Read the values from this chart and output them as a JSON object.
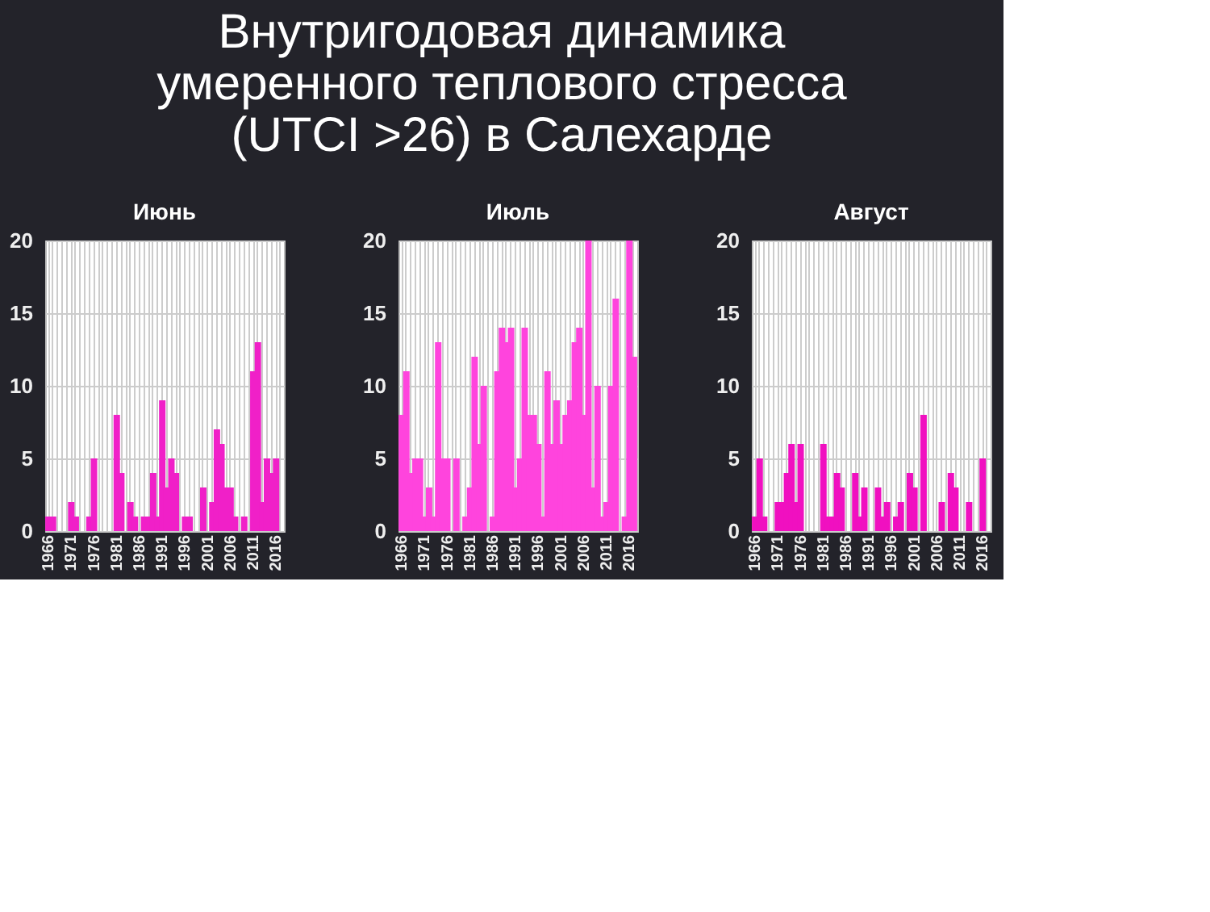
{
  "chart_data": [
    {
      "type": "other",
      "title": "Внутригодовая динамика умеренного теплового стресса (UTCI >26) в Салехарде"
    },
    {
      "type": "bar",
      "title": "Июнь",
      "categories": [
        "1966",
        null,
        null,
        null,
        null,
        "1971",
        null,
        null,
        null,
        null,
        "1976",
        null,
        null,
        null,
        null,
        "1981",
        null,
        null,
        null,
        null,
        "1986",
        null,
        null,
        null,
        null,
        "1991",
        null,
        null,
        null,
        null,
        "1996",
        null,
        null,
        null,
        null,
        "2001",
        null,
        null,
        null,
        null,
        "2006",
        null,
        null,
        null,
        null,
        "2011",
        null,
        null,
        null,
        null,
        "2016",
        null
      ],
      "values": [
        1,
        1,
        0,
        0,
        0,
        2,
        1,
        0,
        0,
        1,
        5,
        0,
        0,
        0,
        0,
        8,
        4,
        0,
        2,
        1,
        0,
        1,
        1,
        4,
        1,
        9,
        3,
        5,
        4,
        0,
        1,
        1,
        0,
        0,
        3,
        0,
        2,
        7,
        6,
        3,
        3,
        1,
        0,
        1,
        0,
        11,
        13,
        2,
        5,
        4,
        5,
        0
      ],
      "color": "#f020c8",
      "ylim": [
        0,
        20
      ],
      "yticks": [
        0,
        5,
        10,
        15,
        20
      ],
      "grid": true
    },
    {
      "type": "bar",
      "title": "Июль",
      "categories": [
        "1966",
        null,
        null,
        null,
        null,
        "1971",
        null,
        null,
        null,
        null,
        "1976",
        null,
        null,
        null,
        null,
        "1981",
        null,
        null,
        null,
        null,
        "1986",
        null,
        null,
        null,
        null,
        "1991",
        null,
        null,
        null,
        null,
        "1996",
        null,
        null,
        null,
        null,
        "2001",
        null,
        null,
        null,
        null,
        "2006",
        null,
        null,
        null,
        null,
        "2011",
        null,
        null,
        null,
        null,
        "2016",
        null
      ],
      "values": [
        8,
        11,
        4,
        5,
        5,
        1,
        3,
        1,
        13,
        5,
        5,
        0,
        5,
        0,
        1,
        3,
        12,
        6,
        10,
        0,
        1,
        11,
        14,
        13,
        14,
        3,
        5,
        14,
        8,
        8,
        6,
        1,
        11,
        6,
        9,
        6,
        8,
        9,
        13,
        14,
        8,
        20,
        3,
        10,
        1,
        2,
        10,
        16,
        0,
        1,
        20,
        12
      ],
      "color": "#ff44dd",
      "ylim": [
        0,
        20
      ],
      "yticks": [
        0,
        5,
        10,
        15,
        20
      ],
      "grid": true
    },
    {
      "type": "bar",
      "title": "Август",
      "categories": [
        "1966",
        null,
        null,
        null,
        null,
        "1971",
        null,
        null,
        null,
        null,
        "1976",
        null,
        null,
        null,
        null,
        "1981",
        null,
        null,
        null,
        null,
        "1986",
        null,
        null,
        null,
        null,
        "1991",
        null,
        null,
        null,
        null,
        "1996",
        null,
        null,
        null,
        null,
        "2001",
        null,
        null,
        null,
        null,
        "2006",
        null,
        null,
        null,
        null,
        "2011",
        null,
        null,
        null,
        null,
        "2016",
        null
      ],
      "values": [
        1,
        5,
        1,
        0,
        0,
        2,
        2,
        4,
        6,
        2,
        6,
        0,
        0,
        0,
        0,
        6,
        1,
        1,
        4,
        3,
        0,
        0,
        4,
        1,
        3,
        0,
        0,
        3,
        1,
        2,
        0,
        1,
        2,
        0,
        4,
        3,
        0,
        8,
        0,
        0,
        0,
        2,
        0,
        4,
        3,
        0,
        0,
        2,
        0,
        0,
        5,
        0
      ],
      "color": "#f010c0",
      "ylim": [
        0,
        20
      ],
      "yticks": [
        0,
        5,
        10,
        15,
        20
      ],
      "grid": true
    }
  ]
}
